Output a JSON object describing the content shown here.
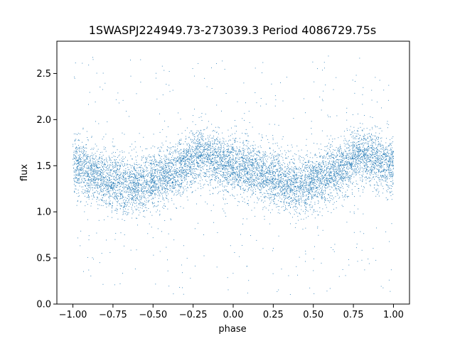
{
  "chart_data": {
    "type": "scatter",
    "title": "1SWASPJ224949.73-273039.3 Period 4086729.75s",
    "xlabel": "phase",
    "ylabel": "flux",
    "xlim": [
      -1.1,
      1.1
    ],
    "ylim": [
      0.0,
      2.85
    ],
    "x_ticks": [
      -1.0,
      -0.75,
      -0.5,
      -0.25,
      0.0,
      0.25,
      0.5,
      0.75,
      1.0
    ],
    "x_tick_labels": [
      "−1.00",
      "−0.75",
      "−0.50",
      "−0.25",
      "0.00",
      "0.25",
      "0.50",
      "0.75",
      "1.00"
    ],
    "y_ticks": [
      0.0,
      0.5,
      1.0,
      1.5,
      2.0,
      2.5
    ],
    "y_tick_labels": [
      "0.0",
      "0.5",
      "1.0",
      "1.5",
      "2.0",
      "2.5"
    ],
    "grid": false,
    "legend": "none",
    "marker_color": "#1f77b4",
    "series": [
      {
        "phase_profile": {
          "phase": [
            -1.0,
            -0.9,
            -0.8,
            -0.7,
            -0.65,
            -0.6,
            -0.5,
            -0.4,
            -0.3,
            -0.2,
            -0.1,
            0.0,
            0.1,
            0.2,
            0.3,
            0.35,
            0.4,
            0.5,
            0.6,
            0.7,
            0.8,
            0.9,
            1.0
          ],
          "median_flux": [
            1.5,
            1.45,
            1.35,
            1.3,
            1.28,
            1.3,
            1.35,
            1.4,
            1.5,
            1.65,
            1.55,
            1.5,
            1.45,
            1.4,
            1.35,
            1.3,
            1.28,
            1.33,
            1.4,
            1.5,
            1.65,
            1.55,
            1.5
          ],
          "scatter": 0.15,
          "outlier_range": [
            0.1,
            2.7
          ],
          "n_points": 9000
        }
      }
    ]
  }
}
